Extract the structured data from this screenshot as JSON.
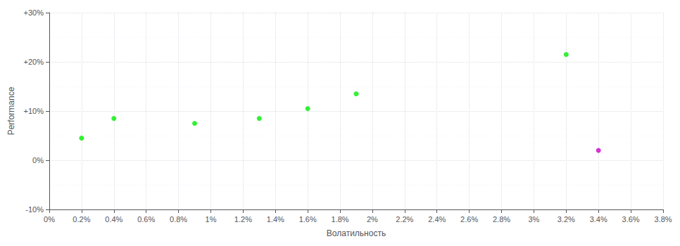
{
  "chart_data": {
    "type": "scatter",
    "xlabel": "Волатильность",
    "ylabel": "Performance",
    "xlim": [
      0,
      0.038
    ],
    "ylim": [
      -0.1,
      0.3
    ],
    "xticks": [
      {
        "value": 0,
        "label": "0%"
      },
      {
        "value": 0.002,
        "label": "0.2%"
      },
      {
        "value": 0.004,
        "label": "0.4%"
      },
      {
        "value": 0.006,
        "label": "0.6%"
      },
      {
        "value": 0.008,
        "label": "0.8%"
      },
      {
        "value": 0.01,
        "label": "1%"
      },
      {
        "value": 0.012,
        "label": "1.2%"
      },
      {
        "value": 0.014,
        "label": "1.4%"
      },
      {
        "value": 0.016,
        "label": "1.6%"
      },
      {
        "value": 0.018,
        "label": "1.8%"
      },
      {
        "value": 0.02,
        "label": "2%"
      },
      {
        "value": 0.022,
        "label": "2.2%"
      },
      {
        "value": 0.024,
        "label": "2.4%"
      },
      {
        "value": 0.026,
        "label": "2.6%"
      },
      {
        "value": 0.028,
        "label": "2.8%"
      },
      {
        "value": 0.03,
        "label": "3%"
      },
      {
        "value": 0.032,
        "label": "3.2%"
      },
      {
        "value": 0.034,
        "label": "3.4%"
      },
      {
        "value": 0.036,
        "label": "3.6%"
      },
      {
        "value": 0.038,
        "label": "3.8%"
      }
    ],
    "yticks": [
      {
        "value": -0.1,
        "label": "-10%"
      },
      {
        "value": 0,
        "label": "0%"
      },
      {
        "value": 0.1,
        "label": "+10%"
      },
      {
        "value": 0.2,
        "label": "+20%"
      },
      {
        "value": 0.3,
        "label": "+30%"
      }
    ],
    "grid": true,
    "series": [
      {
        "color": "#00ee00",
        "x": [
          0.002,
          0.004,
          0.009,
          0.013,
          0.016,
          0.019,
          0.032
        ],
        "values": [
          0.045,
          0.085,
          0.075,
          0.085,
          0.105,
          0.135,
          0.215
        ]
      },
      {
        "color": "#cc00cc",
        "x": [
          0.034
        ],
        "values": [
          0.02
        ]
      }
    ]
  }
}
